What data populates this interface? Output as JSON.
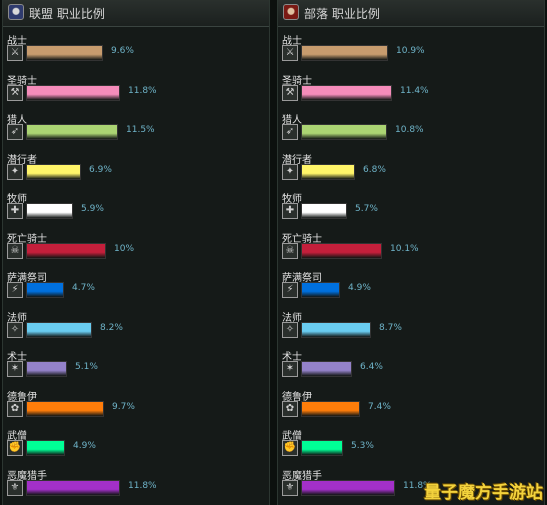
{
  "chart_data": [
    {
      "type": "bar",
      "title": "联盟 职业比例",
      "categories": [
        "战士",
        "圣骑士",
        "猎人",
        "潜行者",
        "牧师",
        "死亡骑士",
        "萨满祭司",
        "法师",
        "术士",
        "德鲁伊",
        "武僧",
        "恶魔猎手"
      ],
      "values": [
        9.6,
        11.8,
        11.5,
        6.9,
        5.9,
        10,
        4.7,
        8.2,
        5.1,
        9.7,
        4.9,
        11.8
      ],
      "value_labels": [
        "9.6%",
        "11.8%",
        "11.5%",
        "6.9%",
        "5.9%",
        "10%",
        "4.7%",
        "8.2%",
        "5.1%",
        "9.7%",
        "4.9%",
        "11.8%"
      ],
      "orientation": "horizontal",
      "grid": false
    },
    {
      "type": "bar",
      "title": "部落 职业比例",
      "categories": [
        "战士",
        "圣骑士",
        "猎人",
        "潜行者",
        "牧师",
        "死亡骑士",
        "萨满祭司",
        "法师",
        "术士",
        "德鲁伊",
        "武僧",
        "恶魔猎手"
      ],
      "values": [
        10.9,
        11.4,
        10.8,
        6.8,
        5.7,
        10.1,
        4.9,
        8.7,
        6.4,
        7.4,
        5.3,
        11.8
      ],
      "value_labels": [
        "10.9%",
        "11.4%",
        "10.8%",
        "6.8%",
        "5.7%",
        "10.1%",
        "4.9%",
        "8.7%",
        "6.4%",
        "7.4%",
        "5.3%",
        "11.8%"
      ],
      "orientation": "horizontal",
      "grid": false
    }
  ],
  "class_colors": [
    "#c79c6e",
    "#f58cba",
    "#abd473",
    "#fff569",
    "#ffffff",
    "#c41f3b",
    "#0070de",
    "#69ccf0",
    "#9482c9",
    "#ff7d0a",
    "#00ff96",
    "#a330c9"
  ],
  "class_icons": [
    "sword-icon",
    "hammer-icon",
    "bow-icon",
    "dagger-icon",
    "staff-icon",
    "skull-rune-icon",
    "totem-icon",
    "wand-icon",
    "pentagram-icon",
    "claw-icon",
    "fist-icon",
    "glaive-icon"
  ],
  "watermark": "量子魔方手游站"
}
